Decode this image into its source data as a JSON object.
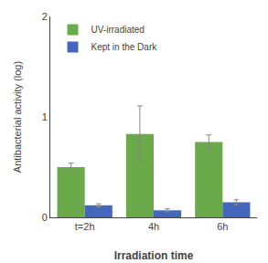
{
  "chart_data": {
    "type": "bar",
    "categories": [
      "t=2h",
      "4h",
      "6h"
    ],
    "series": [
      {
        "name": "UV-irradiated",
        "color": "#6aaa4a",
        "values": [
          0.5,
          0.83,
          0.75
        ],
        "errors": [
          0.04,
          0.28,
          0.07
        ]
      },
      {
        "name": "Kept in the Dark",
        "color": "#4466bb",
        "values": [
          0.12,
          0.07,
          0.15
        ],
        "errors": [
          0.015,
          0.015,
          0.025
        ]
      }
    ],
    "xlabel": "Irradiation time",
    "ylabel": "Antibacterial activity (log)",
    "ylim": [
      0,
      2
    ],
    "yticks": [
      0,
      1,
      2
    ],
    "grid": false,
    "legend": "upper left"
  }
}
